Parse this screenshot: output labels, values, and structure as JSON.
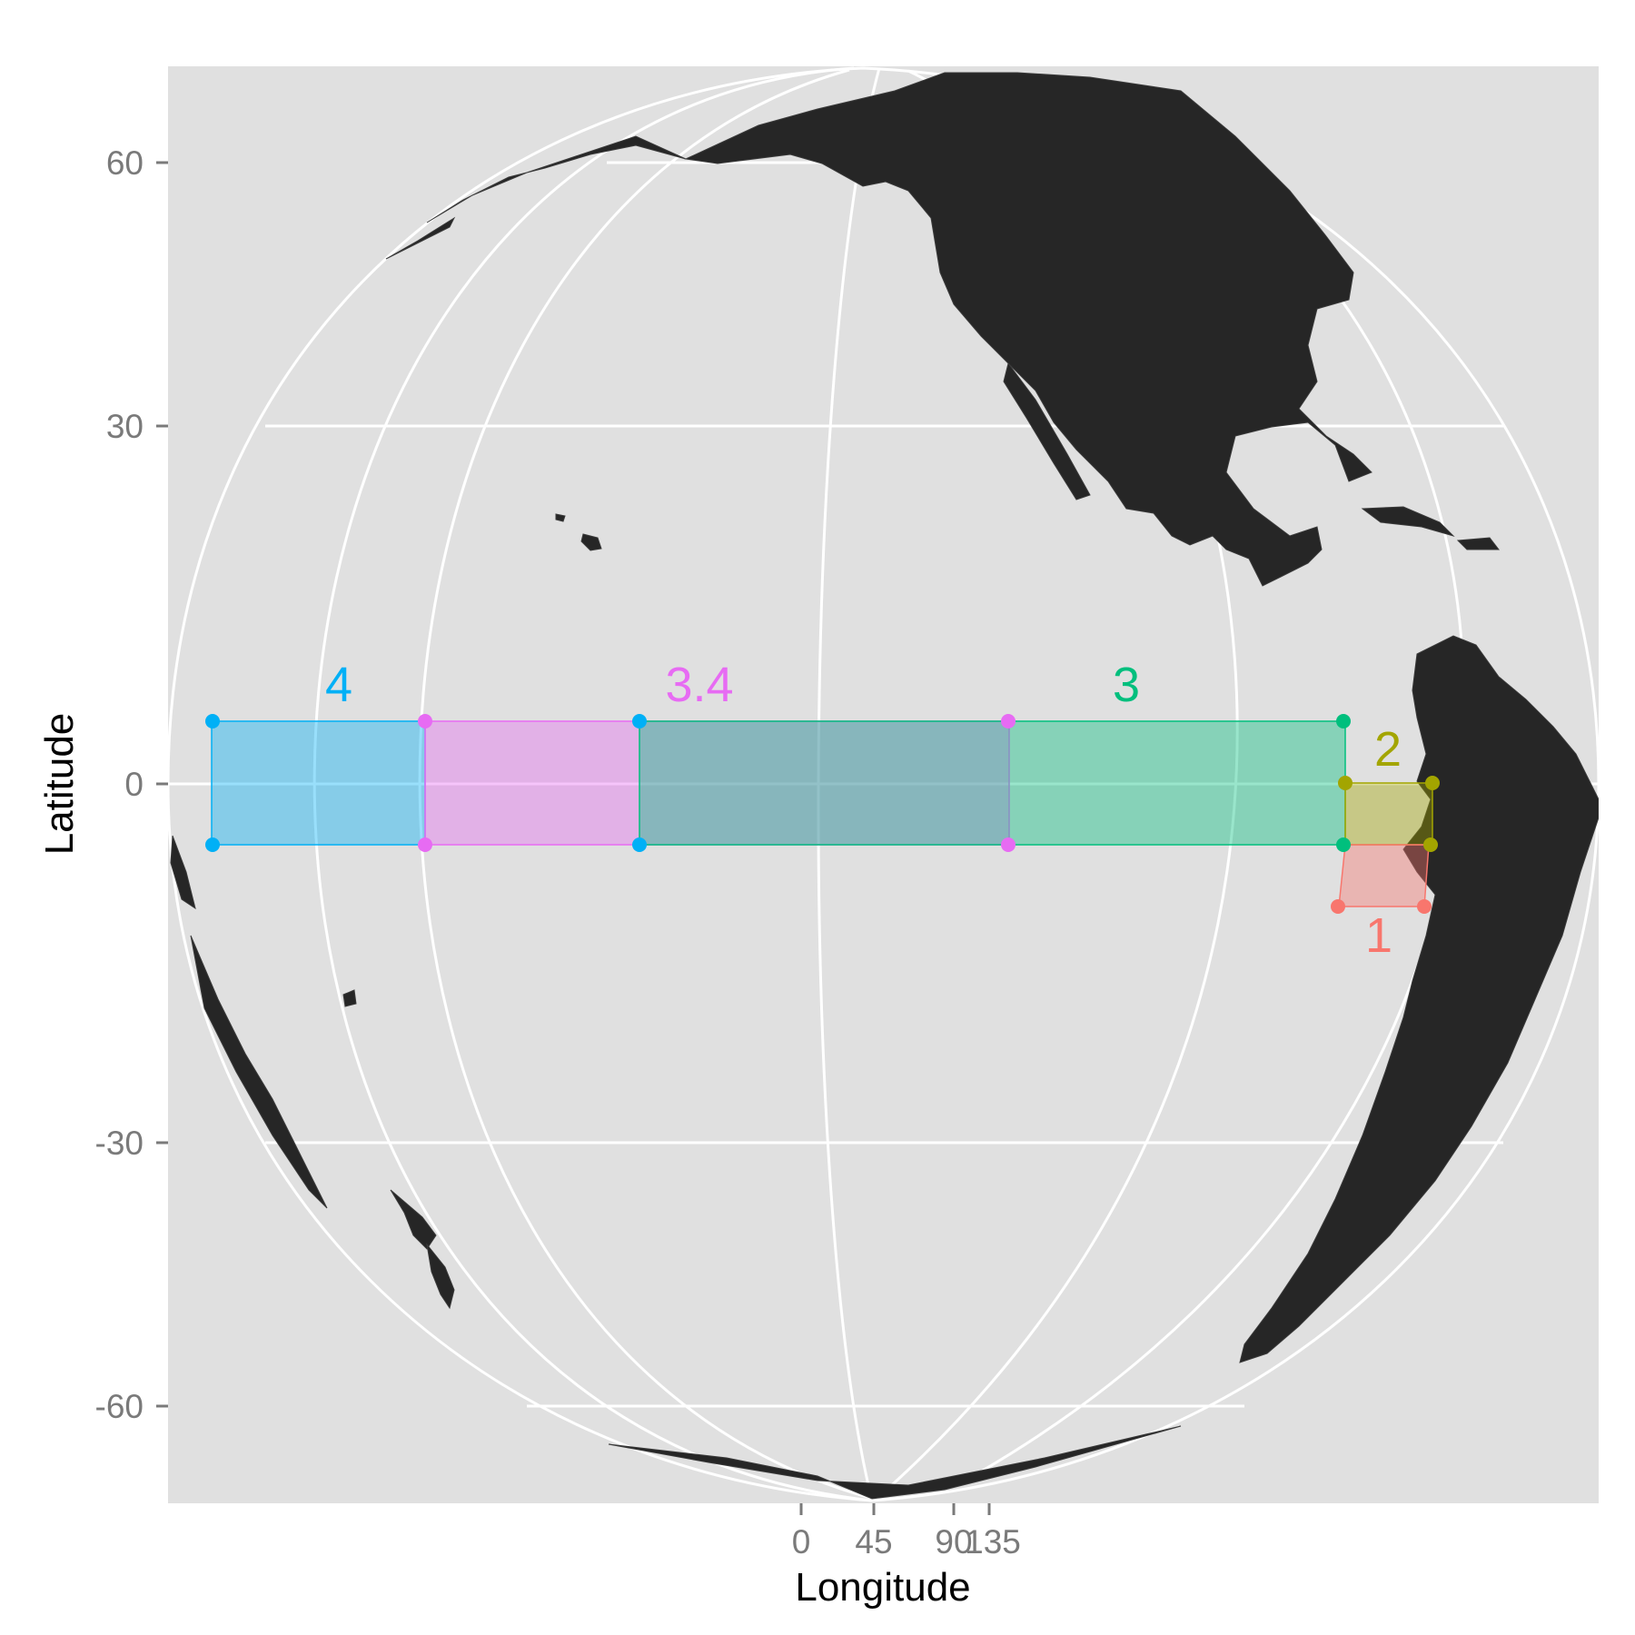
{
  "axes": {
    "x_title": "Longitude",
    "y_title": "Latitude",
    "x_ticks": [
      "0",
      "45",
      "90",
      "135"
    ],
    "y_ticks": [
      "60",
      "30",
      "0",
      "-30",
      "-60"
    ]
  },
  "chart_data": {
    "type": "map",
    "projection": "orthographic",
    "graticule": true,
    "xlabel": "Longitude",
    "ylabel": "Latitude",
    "x_tick_values": [
      0,
      45,
      90,
      135
    ],
    "y_tick_values": [
      60,
      30,
      0,
      -30,
      -60
    ],
    "regions": [
      {
        "label": "1",
        "color": "#f8766d",
        "lat": [
          -10,
          -5
        ]
      },
      {
        "label": "2",
        "color": "#a3a500",
        "lat": [
          -5,
          0
        ]
      },
      {
        "label": "3",
        "color": "#00bf7d",
        "lat": [
          -5,
          5
        ]
      },
      {
        "label": "3.4",
        "color": "#e76bf3",
        "lat": [
          -5,
          5
        ]
      },
      {
        "label": "4",
        "color": "#00b0f6",
        "lat": [
          -5,
          5
        ]
      }
    ]
  },
  "colors": {
    "panel": "#e0e0e0",
    "land": "#262626",
    "grid": "#ffffff"
  }
}
